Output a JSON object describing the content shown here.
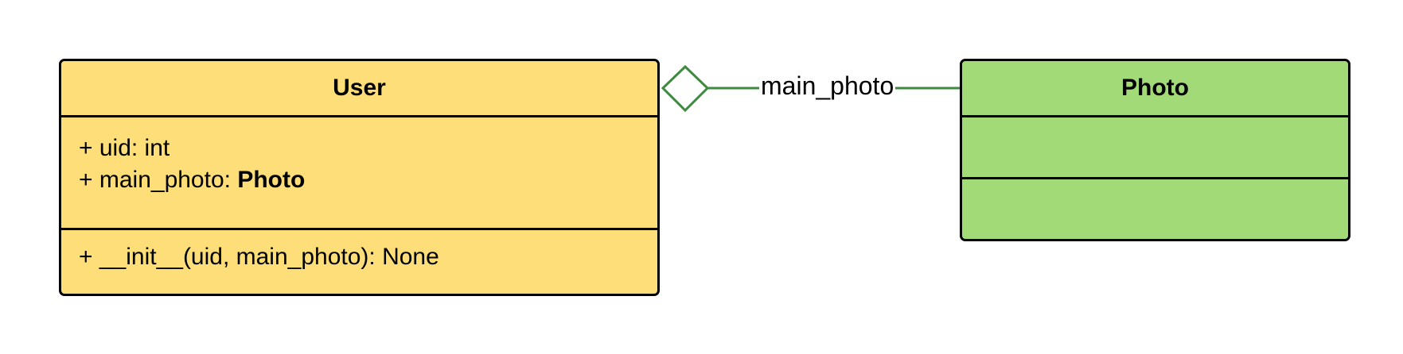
{
  "colors": {
    "user_fill": "#FDDE78",
    "photo_fill": "#A3DA78",
    "border": "#000000",
    "connector": "#3E8A3E"
  },
  "classes": {
    "user": {
      "name": "User",
      "attributes": [
        {
          "prefix": "+ uid: int",
          "type": ""
        },
        {
          "prefix": "+ main_photo: ",
          "type": "Photo"
        }
      ],
      "operations": [
        "+ __init__(uid, main_photo): None"
      ]
    },
    "photo": {
      "name": "Photo",
      "attributes": [],
      "operations": []
    }
  },
  "association": {
    "kind": "aggregation",
    "label": "main_photo",
    "from": "User",
    "to": "Photo"
  }
}
